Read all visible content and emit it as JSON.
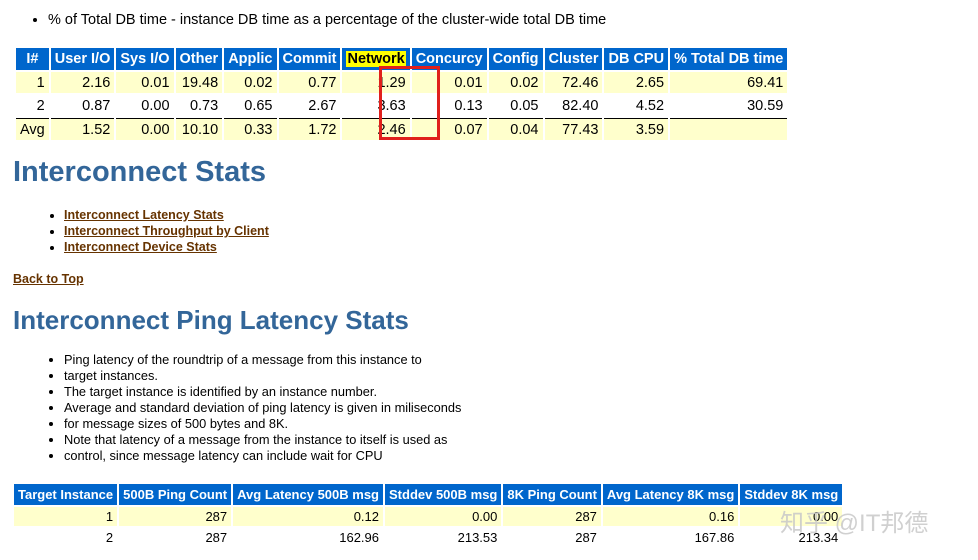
{
  "intro": {
    "bullet": "% of Total DB time - instance DB time as a percentage of the cluster-wide total DB time"
  },
  "db_time_table": {
    "headers": [
      "I#",
      "User I/O",
      "Sys I/O",
      "Other",
      "Applic",
      "Commit",
      "Network",
      "Concurcy",
      "Config",
      "Cluster",
      "DB CPU",
      "% Total DB time"
    ],
    "rows": [
      [
        "1",
        "2.16",
        "0.01",
        "19.48",
        "0.02",
        "0.77",
        "1.29",
        "0.01",
        "0.02",
        "72.46",
        "2.65",
        "69.41"
      ],
      [
        "2",
        "0.87",
        "0.00",
        "0.73",
        "0.65",
        "2.67",
        "3.63",
        "0.13",
        "0.05",
        "82.40",
        "4.52",
        "30.59"
      ],
      [
        "Avg",
        "1.52",
        "0.00",
        "10.10",
        "0.33",
        "1.72",
        "2.46",
        "0.07",
        "0.04",
        "77.43",
        "3.59",
        ""
      ]
    ]
  },
  "interconnect": {
    "title": "Interconnect Stats",
    "links": [
      "Interconnect Latency Stats",
      "Interconnect Throughput by Client",
      "Interconnect Device Stats"
    ],
    "back_to_top": "Back to Top"
  },
  "ping": {
    "title": "Interconnect Ping Latency Stats",
    "bullets": [
      "Ping latency of the roundtrip of a message from this instance to",
      "target instances.",
      "The target instance is identified by an instance number.",
      "Average and standard deviation of ping latency is given in miliseconds",
      "for message sizes of 500 bytes and 8K.",
      "Note that latency of a message from the instance to itself is used as",
      "control, since message latency can include wait for CPU"
    ],
    "headers": [
      "Target Instance",
      "500B Ping Count",
      "Avg Latency 500B msg",
      "Stddev 500B msg",
      "8K Ping Count",
      "Avg Latency 8K msg",
      "Stddev 8K msg"
    ],
    "rows": [
      [
        "1",
        "287",
        "0.12",
        "0.00",
        "287",
        "0.16",
        "0.00"
      ],
      [
        "2",
        "287",
        "162.96",
        "213.53",
        "287",
        "167.86",
        "213.34"
      ]
    ]
  },
  "watermark": "知乎 @IT邦德"
}
